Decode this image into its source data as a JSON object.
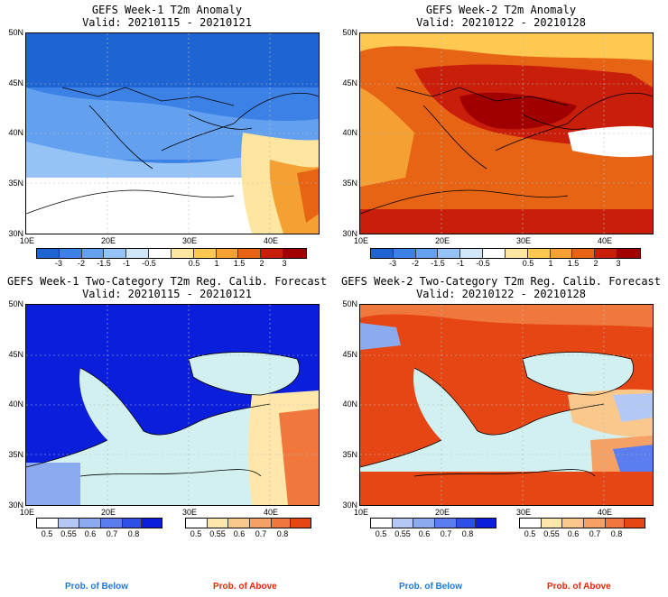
{
  "panels": [
    {
      "title": "GEFS Week-1 T2m Anomaly",
      "valid": "Valid: 20210115 - 20210121",
      "lat_labels": [
        "50N",
        "45N",
        "40N",
        "35N",
        "30N"
      ],
      "lon_labels": [
        "10E",
        "20E",
        "30E",
        "40E"
      ],
      "colorbar_labels": [
        "-3",
        "-2",
        "-1.5",
        "-1",
        "-0.5",
        "0.5",
        "1",
        "1.5",
        "2",
        "3"
      ],
      "field": "cold"
    },
    {
      "title": "GEFS Week-2 T2m Anomaly",
      "valid": "Valid: 20210122 - 20210128",
      "lat_labels": [
        "50N",
        "45N",
        "40N",
        "35N",
        "30N"
      ],
      "lon_labels": [
        "10E",
        "20E",
        "30E",
        "40E"
      ],
      "colorbar_labels": [
        "-3",
        "-2",
        "-1.5",
        "-1",
        "-0.5",
        "0.5",
        "1",
        "1.5",
        "2",
        "3"
      ],
      "field": "warm"
    },
    {
      "title": "GEFS Week-1 Two-Category T2m Reg. Calib. Forecast",
      "valid": "Valid: 20210115 - 20210121",
      "lat_labels": [
        "50N",
        "45N",
        "40N",
        "35N",
        "30N"
      ],
      "lon_labels": [
        "10E",
        "20E",
        "30E",
        "40E"
      ],
      "below_labels": [
        "0.5",
        "0.55",
        "0.6",
        "0.7",
        "0.8"
      ],
      "above_labels": [
        "0.5",
        "0.55",
        "0.6",
        "0.7",
        "0.8"
      ],
      "field": "prob-below"
    },
    {
      "title": "GEFS Week-2 Two-Category T2m Reg. Calib. Forecast",
      "valid": "Valid: 20210122 - 20210128",
      "lat_labels": [
        "50N",
        "45N",
        "40N",
        "35N",
        "30N"
      ],
      "lon_labels": [
        "10E",
        "20E",
        "30E",
        "40E"
      ],
      "below_labels": [
        "0.5",
        "0.55",
        "0.6",
        "0.7",
        "0.8"
      ],
      "above_labels": [
        "0.5",
        "0.55",
        "0.6",
        "0.7",
        "0.8"
      ],
      "field": "prob-above"
    }
  ],
  "footer": {
    "below_left": "Prob. of Below",
    "above_left": "Prob. of Above",
    "below_right": "Prob. of Below",
    "above_right": "Prob. of Above"
  },
  "colors": {
    "anomaly_scale": [
      "#1e64d2",
      "#3c82e6",
      "#64a0f0",
      "#96c3f5",
      "#d2e6fa",
      "#ffffff",
      "#ffe6a0",
      "#ffc850",
      "#f5a032",
      "#e66414",
      "#c81e0a",
      "#a00000"
    ],
    "prob_below_scale": [
      "#ffffff",
      "#b4c8f5",
      "#8caaf0",
      "#5a7df0",
      "#2d50e6",
      "#0a1edc"
    ],
    "prob_above_scale": [
      "#ffffff",
      "#ffe6aa",
      "#fbc88c",
      "#f5a064",
      "#f0783c",
      "#e64614"
    ],
    "sea": "#d2f0f0"
  }
}
